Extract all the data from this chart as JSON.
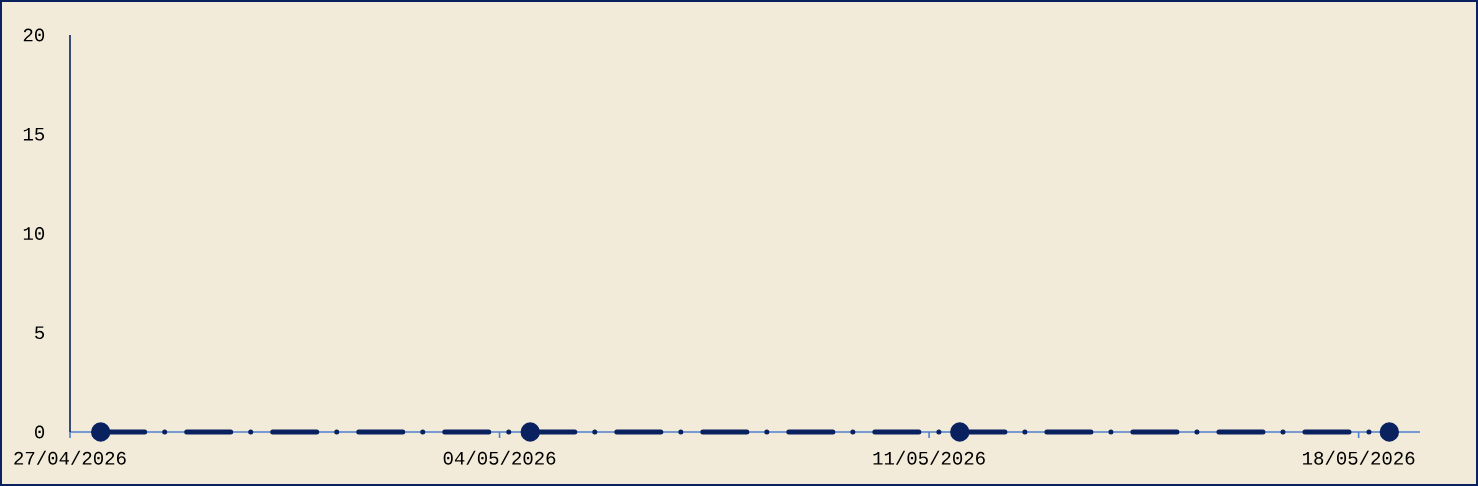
{
  "chart_data": {
    "type": "line",
    "x": [
      "2026-04-27T12:00",
      "2026-05-04T12:00",
      "2026-05-11T12:00",
      "2026-05-18T12:00"
    ],
    "series": [
      {
        "color": "#0a2160",
        "values": [
          0,
          0,
          0,
          0
        ]
      }
    ],
    "xlim": [
      "2026-04-27",
      "2026-05-19"
    ],
    "xticks": [
      {
        "value": "2026-04-27",
        "label": "27/04/2026"
      },
      {
        "value": "2026-05-04",
        "label": "04/05/2026"
      },
      {
        "value": "2026-05-11",
        "label": "11/05/2026"
      },
      {
        "value": "2026-05-18",
        "label": "18/05/2026"
      }
    ],
    "ylim": [
      0,
      20
    ],
    "yticks": [
      0,
      5,
      10,
      15,
      20
    ],
    "marker": "circle",
    "line_style": "dashed"
  }
}
